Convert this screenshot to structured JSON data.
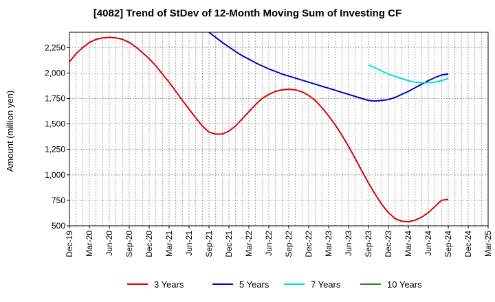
{
  "chart_data": {
    "type": "line",
    "title": "[4082]  Trend of StDev of 12-Month Moving Sum of Investing CF",
    "xlabel": "",
    "ylabel": "Amount (million yen)",
    "ylim": [
      500,
      2400
    ],
    "y_ticks": [
      500,
      750,
      1000,
      1250,
      1500,
      1750,
      2000,
      2250
    ],
    "y_tick_labels": [
      "500",
      "750",
      "1,000",
      "1,250",
      "1,500",
      "1,750",
      "2,000",
      "2,250"
    ],
    "x_tick_labels": [
      "Dec-19",
      "Mar-20",
      "Jun-20",
      "Sep-20",
      "Dec-20",
      "Mar-21",
      "Jun-21",
      "Sep-21",
      "Dec-21",
      "Mar-22",
      "Jun-22",
      "Sep-22",
      "Dec-22",
      "Mar-23",
      "Jun-23",
      "Sep-23",
      "Dec-23",
      "Mar-24",
      "Jun-24",
      "Sep-24",
      "Dec-24",
      "Mar-25"
    ],
    "grid": true,
    "legend_position": "bottom",
    "series": [
      {
        "name": "3 Years",
        "color": "#dd0000",
        "x": [
          "Dec-19",
          "Jan-20",
          "Feb-20",
          "Mar-20",
          "Apr-20",
          "May-20",
          "Jun-20",
          "Jul-20",
          "Aug-20",
          "Sep-20",
          "Oct-20",
          "Nov-20",
          "Dec-20",
          "Jan-21",
          "Feb-21",
          "Mar-21",
          "Apr-21",
          "May-21",
          "Jun-21",
          "Jul-21",
          "Aug-21",
          "Sep-21",
          "Oct-21",
          "Nov-21",
          "Dec-21",
          "Jan-22",
          "Feb-22",
          "Mar-22",
          "Apr-22",
          "May-22",
          "Jun-22",
          "Jul-22",
          "Aug-22",
          "Sep-22",
          "Oct-22",
          "Nov-22",
          "Dec-22",
          "Jan-23",
          "Feb-23",
          "Mar-23",
          "Apr-23",
          "May-23",
          "Jun-23",
          "Jul-23",
          "Aug-23",
          "Sep-23",
          "Oct-23",
          "Nov-23",
          "Dec-23",
          "Jan-24",
          "Feb-24",
          "Mar-24",
          "Apr-24",
          "May-24",
          "Jun-24",
          "Jul-24",
          "Aug-24",
          "Sep-24"
        ],
        "values": [
          2110,
          2190,
          2250,
          2300,
          2330,
          2345,
          2350,
          2345,
          2330,
          2300,
          2255,
          2200,
          2140,
          2070,
          1990,
          1910,
          1820,
          1730,
          1645,
          1560,
          1480,
          1420,
          1400,
          1400,
          1430,
          1480,
          1550,
          1620,
          1690,
          1750,
          1790,
          1820,
          1835,
          1840,
          1835,
          1815,
          1780,
          1730,
          1660,
          1580,
          1490,
          1390,
          1280,
          1160,
          1040,
          920,
          810,
          710,
          630,
          570,
          545,
          540,
          555,
          585,
          630,
          690,
          750,
          760
        ]
      },
      {
        "name": "5 Years",
        "color": "#0000cc",
        "x": [
          "Sep-21",
          "Oct-21",
          "Nov-21",
          "Dec-21",
          "Jan-22",
          "Feb-22",
          "Mar-22",
          "Apr-22",
          "May-22",
          "Jun-22",
          "Jul-22",
          "Aug-22",
          "Sep-22",
          "Oct-22",
          "Nov-22",
          "Dec-22",
          "Jan-23",
          "Feb-23",
          "Mar-23",
          "Apr-23",
          "May-23",
          "Jun-23",
          "Jul-23",
          "Aug-23",
          "Sep-23",
          "Oct-23",
          "Nov-23",
          "Dec-23",
          "Jan-24",
          "Feb-24",
          "Mar-24",
          "Apr-24",
          "May-24",
          "Jun-24",
          "Jul-24",
          "Aug-24",
          "Sep-24"
        ],
        "values": [
          2400,
          2350,
          2300,
          2255,
          2210,
          2170,
          2135,
          2100,
          2070,
          2040,
          2015,
          1990,
          1970,
          1950,
          1930,
          1910,
          1890,
          1870,
          1850,
          1830,
          1810,
          1790,
          1770,
          1750,
          1730,
          1725,
          1730,
          1740,
          1760,
          1790,
          1820,
          1855,
          1890,
          1925,
          1955,
          1980,
          1990
        ]
      },
      {
        "name": "7 Years",
        "color": "#00dddd",
        "x": [
          "Sep-23",
          "Oct-23",
          "Nov-23",
          "Dec-23",
          "Jan-24",
          "Feb-24",
          "Mar-24",
          "Apr-24",
          "May-24",
          "Jun-24",
          "Jul-24",
          "Aug-24",
          "Sep-24"
        ],
        "values": [
          2080,
          2050,
          2020,
          1990,
          1965,
          1945,
          1925,
          1910,
          1905,
          1905,
          1910,
          1925,
          1945
        ]
      },
      {
        "name": "10 Years",
        "color": "#228822",
        "x": [],
        "values": []
      }
    ]
  }
}
